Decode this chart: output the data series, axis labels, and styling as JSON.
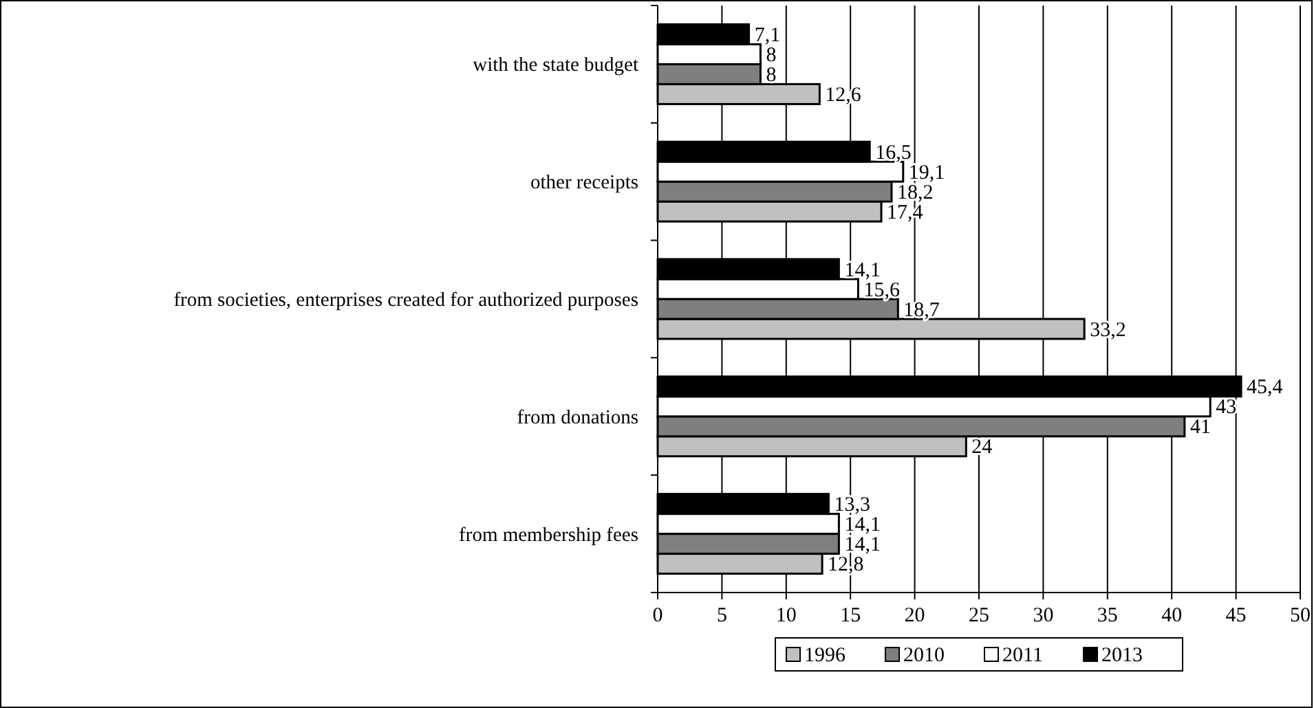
{
  "chart_data": {
    "type": "bar",
    "orientation": "horizontal",
    "categories": [
      "with the state budget",
      "other receipts",
      "from societies, enterprises created for authorized purposes",
      "from donations",
      "from membership fees"
    ],
    "series": [
      {
        "name": "1996",
        "color": "#c0c0c0",
        "values": [
          12.6,
          17.4,
          33.2,
          24,
          12.8
        ],
        "value_labels": [
          "12,6",
          "17,4",
          "33,2",
          "24",
          "12,8"
        ]
      },
      {
        "name": "2010",
        "color": "#7f7f7f",
        "values": [
          8,
          18.2,
          18.7,
          41,
          14.1
        ],
        "value_labels": [
          "8",
          "18,2",
          "18,7",
          "41",
          "14,1"
        ]
      },
      {
        "name": "2011",
        "color": "#ffffff",
        "values": [
          8,
          19.1,
          15.6,
          43,
          14.1
        ],
        "value_labels": [
          "8",
          "19,1",
          "15,6",
          "43",
          "14,1"
        ]
      },
      {
        "name": "2013",
        "color": "#000000",
        "values": [
          7.1,
          16.5,
          14.1,
          45.4,
          13.3
        ],
        "value_labels": [
          "7,1",
          "16,5",
          "14,1",
          "45,4",
          "13,3"
        ]
      }
    ],
    "xlim": [
      0,
      50
    ],
    "xticks": [
      0,
      5,
      10,
      15,
      20,
      25,
      30,
      35,
      40,
      45,
      50
    ],
    "grid": "x",
    "legend": "bottom"
  }
}
